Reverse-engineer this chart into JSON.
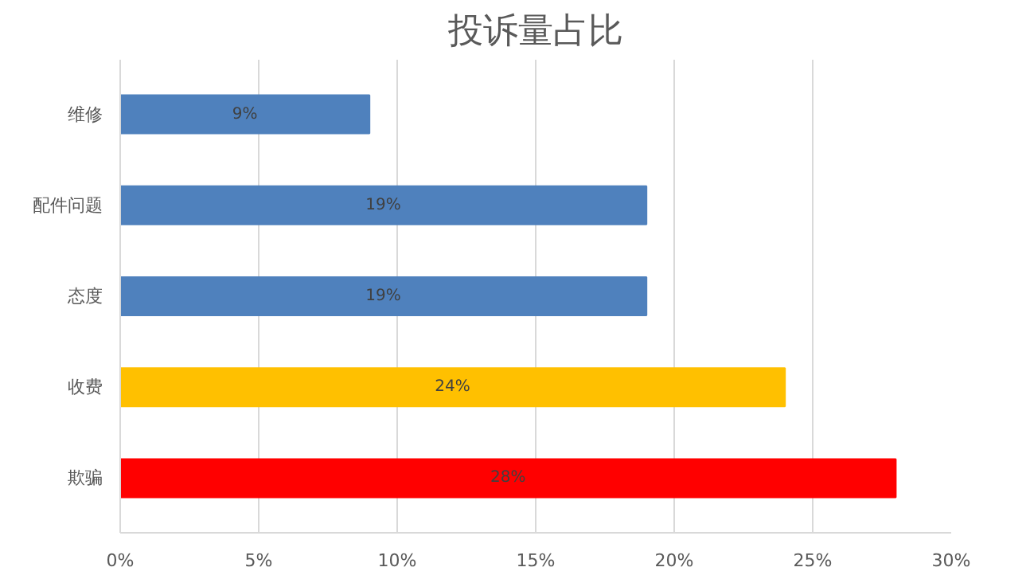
{
  "chart_data": {
    "type": "bar",
    "orientation": "horizontal",
    "title": "投诉量占比",
    "categories": [
      "维修",
      "配件问题",
      "态度",
      "收费",
      "欺骗"
    ],
    "values": [
      9,
      19,
      19,
      24,
      28
    ],
    "colors": [
      "#4f81bd",
      "#4f81bd",
      "#4f81bd",
      "#ffc000",
      "#ff0000"
    ],
    "xlim": [
      0,
      30
    ],
    "xticks": [
      {
        "value": 0,
        "label": "0%"
      },
      {
        "value": 5,
        "label": "5%"
      },
      {
        "value": 10,
        "label": "10%"
      },
      {
        "value": 15,
        "label": "15%"
      },
      {
        "value": 20,
        "label": "20%"
      },
      {
        "value": 25,
        "label": "25%"
      },
      {
        "value": 30,
        "label": "30%"
      }
    ],
    "value_labels": [
      "9%",
      "19%",
      "19%",
      "24%",
      "28%"
    ],
    "grid": "x"
  }
}
